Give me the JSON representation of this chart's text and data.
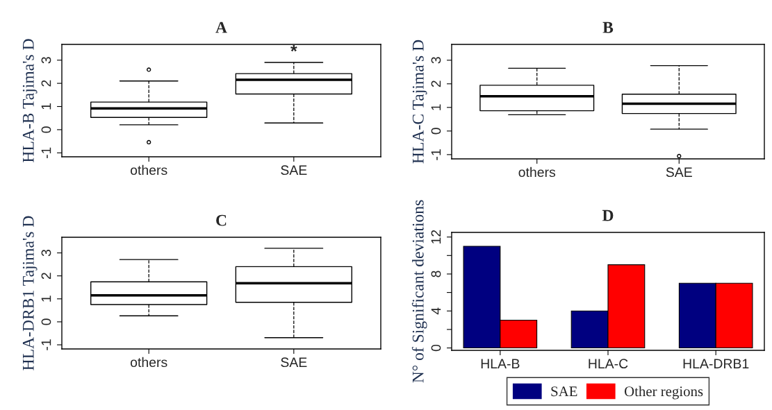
{
  "chart_data": [
    {
      "type": "box",
      "title": "A",
      "ylabel": "HLA-B Tajima's D",
      "categories": [
        "others",
        "SAE"
      ],
      "boxes": [
        {
          "low": 0.21,
          "q1": 0.53,
          "median": 0.92,
          "q3": 1.19,
          "high": 2.1,
          "outliers": [
            2.59,
            -0.54
          ]
        },
        {
          "low": 0.29,
          "q1": 1.54,
          "median": 2.15,
          "q3": 2.42,
          "high": 2.9
        }
      ],
      "ylim": [
        -1.17,
        3.68
      ],
      "yticks": [
        -1,
        0,
        1,
        2,
        3
      ],
      "grid": false,
      "marker": "circle",
      "annotations": [
        "*"
      ]
    },
    {
      "type": "box",
      "title": "B",
      "ylabel": "HLA-C Tajima's D",
      "categories": [
        "others",
        "SAE"
      ],
      "boxes": [
        {
          "low": 0.69,
          "q1": 0.86,
          "median": 1.47,
          "q3": 1.94,
          "high": 2.66
        },
        {
          "low": 0.08,
          "q1": 0.74,
          "median": 1.16,
          "q3": 1.56,
          "high": 2.77,
          "outliers": [
            -1.06
          ]
        }
      ],
      "ylim": [
        -1.18,
        3.67
      ],
      "yticks": [
        -1,
        0,
        1,
        2,
        3
      ],
      "grid": false,
      "marker": "circle"
    },
    {
      "type": "box",
      "title": "C",
      "ylabel": "HLA-DRB1 Tajima's D",
      "categories": [
        "others",
        "SAE"
      ],
      "boxes": [
        {
          "low": 0.26,
          "q1": 0.75,
          "median": 1.15,
          "q3": 1.74,
          "high": 2.71
        },
        {
          "low": -0.69,
          "q1": 0.85,
          "median": 1.68,
          "q3": 2.4,
          "high": 3.2
        }
      ],
      "ylim": [
        -1.18,
        3.68
      ],
      "yticks": [
        -1,
        0,
        1,
        2,
        3
      ],
      "grid": false,
      "marker": "circle"
    },
    {
      "type": "bar",
      "title": "D",
      "ylabel": "N° of Significant deviations",
      "categories": [
        "HLA-B",
        "HLA-C",
        "HLA-DRB1"
      ],
      "series": [
        {
          "name": "SAE",
          "color": "#000080",
          "values": [
            11,
            4,
            7
          ]
        },
        {
          "name": "Other regions",
          "color": "#ff0000",
          "values": [
            3,
            9,
            7
          ]
        }
      ],
      "ylim": [
        -0.26,
        12.5
      ],
      "yticks": [
        0,
        {
          "value": 2,
          "label": null
        },
        4,
        {
          "value": 6,
          "label": null
        },
        8,
        {
          "value": 10,
          "label": null
        },
        12
      ],
      "grid": false,
      "legend": "bottom"
    }
  ]
}
